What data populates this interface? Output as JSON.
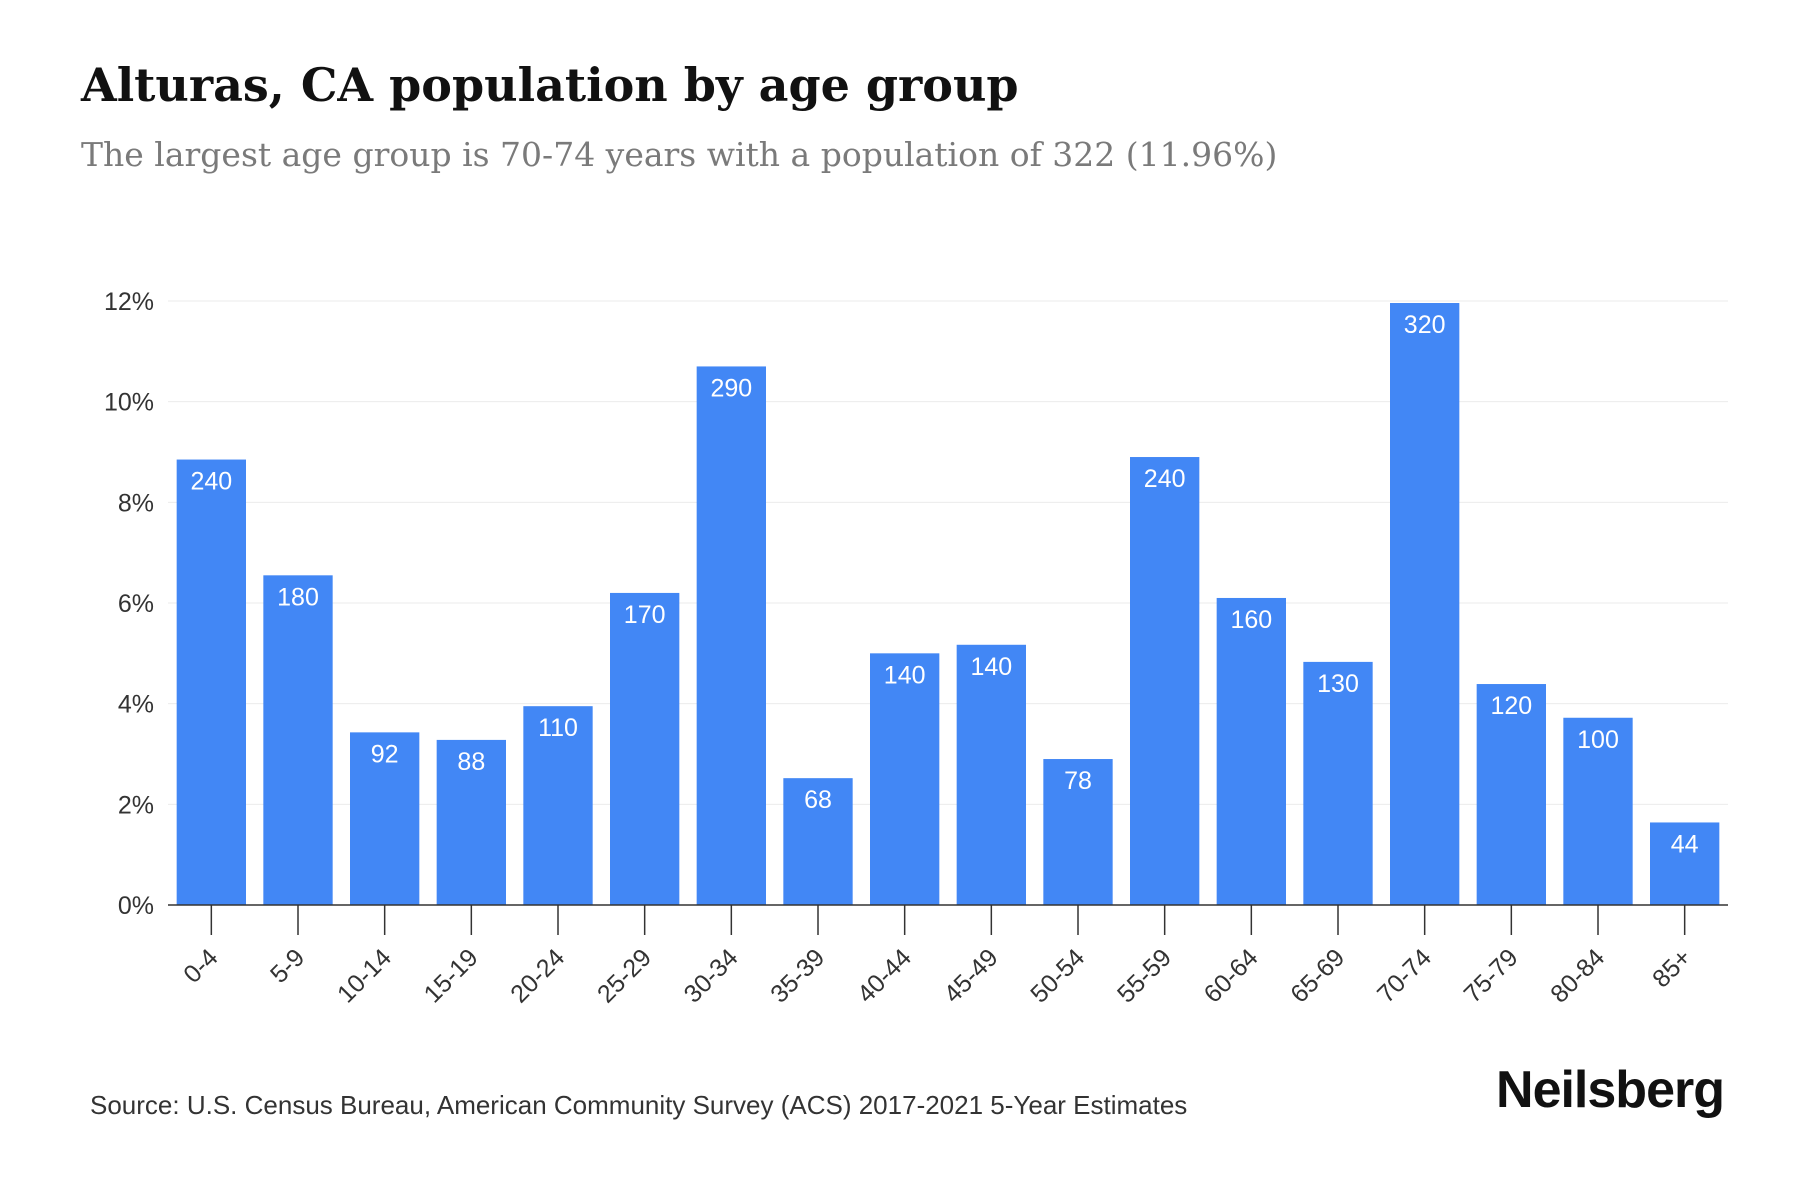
{
  "chart_data": {
    "type": "bar",
    "title": "Alturas, CA population by age group",
    "subtitle": "The largest age group is 70-74 years with a population of 322 (11.96%)",
    "categories": [
      "0-4",
      "5-9",
      "10-14",
      "15-19",
      "20-24",
      "25-29",
      "30-34",
      "35-39",
      "40-44",
      "45-49",
      "50-54",
      "55-59",
      "60-64",
      "65-69",
      "70-74",
      "75-79",
      "80-84",
      "85+"
    ],
    "percent_values": [
      8.85,
      6.55,
      3.43,
      3.28,
      3.95,
      6.2,
      10.7,
      2.52,
      5.0,
      5.17,
      2.9,
      8.9,
      6.1,
      4.83,
      11.96,
      4.39,
      3.72,
      1.64
    ],
    "data_labels": [
      "240",
      "180",
      "92",
      "88",
      "110",
      "170",
      "290",
      "68",
      "140",
      "140",
      "78",
      "240",
      "160",
      "130",
      "320",
      "120",
      "100",
      "44"
    ],
    "ylim": [
      0,
      12
    ],
    "yticks": [
      0,
      2,
      4,
      6,
      8,
      10,
      12
    ],
    "ytick_labels": [
      "0%",
      "2%",
      "4%",
      "6%",
      "8%",
      "10%",
      "12%"
    ],
    "xlabel": "",
    "ylabel": "",
    "grid": true,
    "bar_color": "#4287f5"
  },
  "source": "Source: U.S. Census Bureau, American Community Survey (ACS) 2017-2021 5-Year Estimates",
  "brand": "Neilsberg"
}
